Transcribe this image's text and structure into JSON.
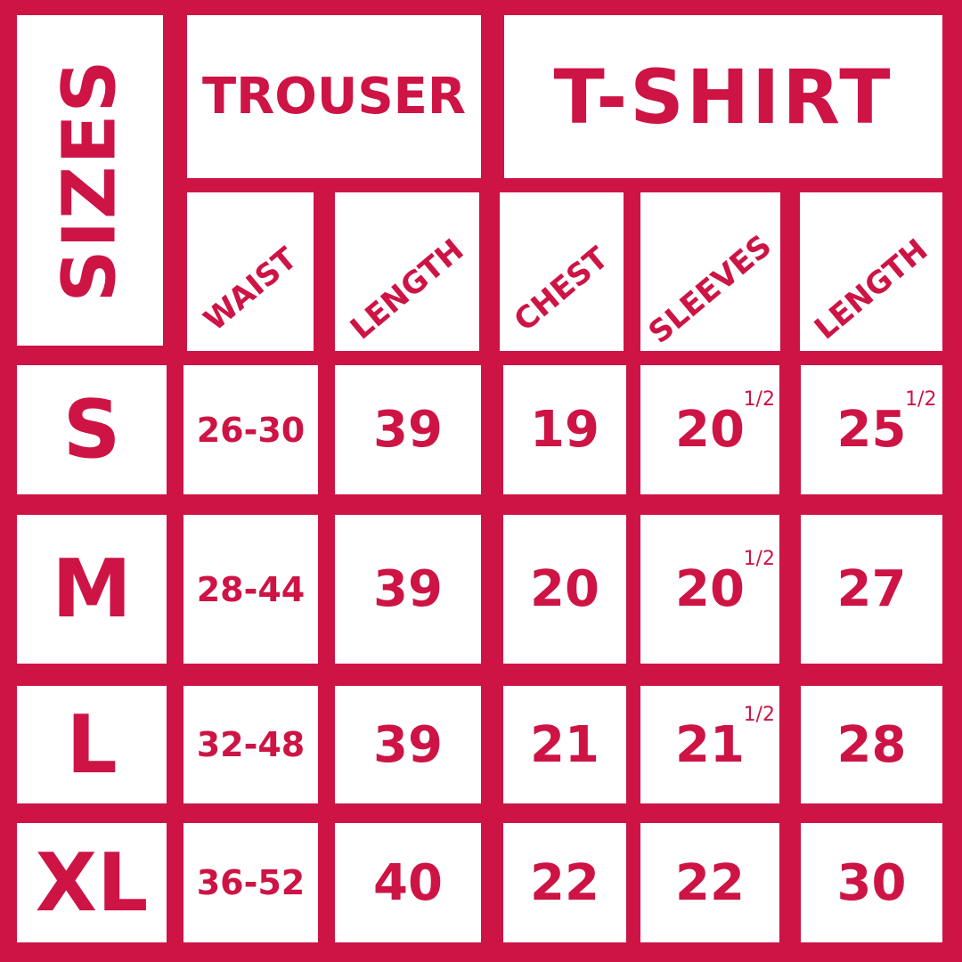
{
  "header": {
    "sizes": "SIZES",
    "trouser": "TROUSER",
    "tshirt": "T-SHIRT"
  },
  "columns": [
    "WAIST",
    "LENGTH",
    "CHEST",
    "SLEEVES",
    "LENGTH"
  ],
  "rows": [
    {
      "size": "S",
      "waist": "26-30",
      "trouser_length": "39",
      "chest": "19",
      "sleeves": "20",
      "sleeves_fraction": "1/2",
      "tshirt_length": "25",
      "length_fraction": "1/2"
    },
    {
      "size": "M",
      "waist": "28-44",
      "trouser_length": "39",
      "chest": "20",
      "sleeves": "20",
      "sleeves_fraction": "1/2",
      "tshirt_length": "27",
      "length_fraction": ""
    },
    {
      "size": "L",
      "waist": "32-48",
      "trouser_length": "39",
      "chest": "21",
      "sleeves": "21",
      "sleeves_fraction": "1/2",
      "tshirt_length": "28",
      "length_fraction": ""
    },
    {
      "size": "XL",
      "waist": "36-52",
      "trouser_length": "40",
      "chest": "22",
      "sleeves": "22",
      "sleeves_fraction": "",
      "tshirt_length": "30",
      "length_fraction": ""
    }
  ],
  "colors": {
    "accent": "#cd1445",
    "cell": "#ffffff"
  }
}
